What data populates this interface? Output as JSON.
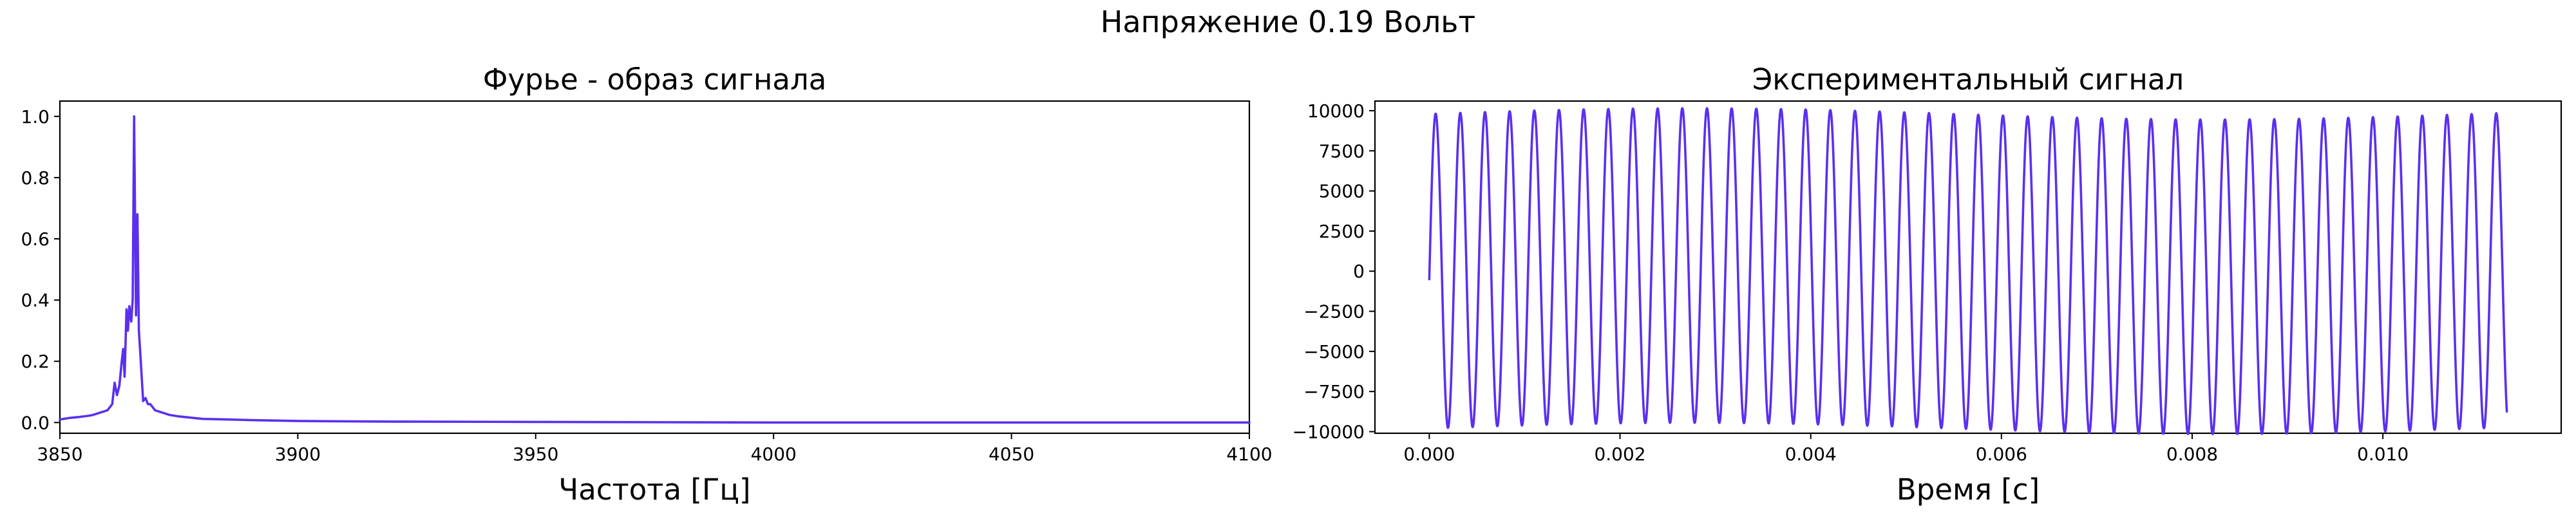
{
  "figure": {
    "title": "Напряжение 0.19 Вольт",
    "line_color": "#5b2ff0"
  },
  "chart_data": [
    {
      "type": "line",
      "title": "Фурье - образ сигнала",
      "xlabel": "Частота [Гц]",
      "ylabel": "",
      "xlim": [
        3850,
        4100
      ],
      "ylim": [
        -0.035,
        1.05
      ],
      "grid": false,
      "x_ticks": [
        3850,
        3900,
        3950,
        4000,
        4050,
        4100
      ],
      "x_tick_labels": [
        "3850",
        "3900",
        "3950",
        "4000",
        "4050",
        "4100"
      ],
      "y_ticks": [
        0.0,
        0.2,
        0.4,
        0.6,
        0.8,
        1.0
      ],
      "y_tick_labels": [
        "0.0",
        "0.2",
        "0.4",
        "0.6",
        "0.8",
        "1.0"
      ],
      "series": [
        {
          "x": [
            3850,
            3852,
            3854,
            3856,
            3857,
            3858,
            3859,
            3860,
            3861,
            3861.5,
            3862,
            3862.5,
            3863,
            3863.3,
            3863.6,
            3864,
            3864.3,
            3864.6,
            3865,
            3865.3,
            3865.6,
            3866,
            3866.3,
            3866.6,
            3867,
            3867.5,
            3868,
            3868.5,
            3869,
            3869.5,
            3870,
            3871,
            3872,
            3873,
            3875,
            3878,
            3880,
            3885,
            3890,
            3900,
            3920,
            3950,
            4000,
            4050,
            4100
          ],
          "y": [
            0.01,
            0.015,
            0.018,
            0.022,
            0.025,
            0.03,
            0.035,
            0.04,
            0.06,
            0.13,
            0.09,
            0.12,
            0.2,
            0.24,
            0.15,
            0.37,
            0.3,
            0.38,
            0.33,
            0.4,
            1.0,
            0.35,
            0.68,
            0.3,
            0.2,
            0.07,
            0.08,
            0.06,
            0.06,
            0.05,
            0.04,
            0.035,
            0.03,
            0.025,
            0.02,
            0.015,
            0.012,
            0.01,
            0.008,
            0.005,
            0.003,
            0.002,
            0.0,
            0.0,
            0.0
          ]
        }
      ]
    },
    {
      "type": "line",
      "title": "Экспериментальный сигнал",
      "xlabel": "Время [с]",
      "ylabel": "",
      "xlim": [
        -0.00057,
        0.01187
      ],
      "ylim": [
        -10100,
        10600
      ],
      "grid": false,
      "x_ticks": [
        0.0,
        0.002,
        0.004,
        0.006,
        0.008,
        0.01
      ],
      "x_tick_labels": [
        "0.000",
        "0.002",
        "0.004",
        "0.006",
        "0.008",
        "0.010"
      ],
      "y_ticks": [
        -10000,
        -7500,
        -5000,
        -2500,
        0,
        2500,
        5000,
        7500,
        10000
      ],
      "y_tick_labels": [
        "−10000",
        "−7500",
        "−5000",
        "−2500",
        "0",
        "2500",
        "5000",
        "7500",
        "10000"
      ],
      "series": [
        {
          "x_start": 0.0,
          "x_end": 0.0113,
          "frequency_hz": 3866,
          "amplitude": 9800,
          "start_value": -500,
          "end_value": -9300,
          "note": "sinusoidal oscillation ~44 cycles spanning the x range"
        }
      ]
    }
  ]
}
